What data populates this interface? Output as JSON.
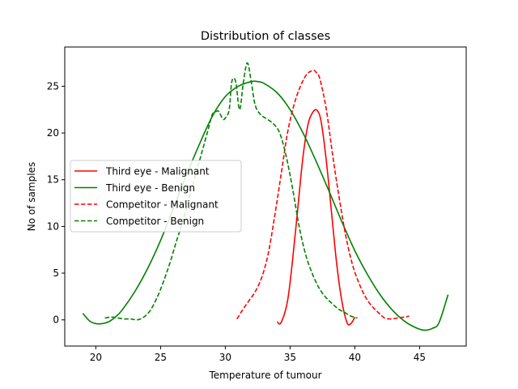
{
  "chart_data": {
    "type": "line",
    "title": "Distribution of classes",
    "xlabel": "Temperature of tumour",
    "ylabel": "No of samples",
    "xlim": [
      17.6,
      48.6
    ],
    "ylim": [
      -2.8,
      29.2
    ],
    "xticks": [
      20,
      25,
      30,
      35,
      40,
      45
    ],
    "yticks": [
      0,
      5,
      10,
      15,
      20,
      25
    ],
    "grid": false,
    "legend_position": "center-left",
    "series": [
      {
        "name": "Third eye - Malignant",
        "color": "#ff0000",
        "dash": "solid",
        "x": [
          34.0,
          34.3,
          34.8,
          35.2,
          35.6,
          36.0,
          36.4,
          36.8,
          37.1,
          37.4,
          37.8,
          38.2,
          38.6,
          39.0,
          39.4,
          39.7,
          40.0
        ],
        "y": [
          -0.2,
          -0.3,
          2.0,
          6.5,
          12.0,
          17.5,
          21.0,
          22.3,
          22.4,
          21.2,
          17.0,
          11.5,
          6.0,
          2.0,
          -0.3,
          -0.4,
          0.3
        ]
      },
      {
        "name": "Third eye - Benign",
        "color": "#008000",
        "dash": "solid",
        "x": [
          19.0,
          19.5,
          20.0,
          20.5,
          21.0,
          21.5,
          22.0,
          23.0,
          24.0,
          25.0,
          26.0,
          27.0,
          28.0,
          29.0,
          30.0,
          31.0,
          32.0,
          32.5,
          33.0,
          34.0,
          35.0,
          36.0,
          37.0,
          38.0,
          39.0,
          40.0,
          41.0,
          42.0,
          43.0,
          44.0,
          45.0,
          45.5,
          46.0,
          46.5,
          47.2
        ],
        "y": [
          0.7,
          -0.1,
          -0.4,
          -0.4,
          -0.2,
          0.3,
          1.0,
          3.0,
          5.5,
          8.5,
          12.0,
          15.5,
          18.8,
          21.8,
          23.9,
          25.0,
          25.5,
          25.5,
          25.3,
          24.3,
          22.5,
          20.0,
          17.0,
          13.8,
          10.5,
          7.4,
          4.8,
          2.6,
          0.9,
          -0.3,
          -1.0,
          -1.1,
          -0.9,
          -0.3,
          2.7
        ]
      },
      {
        "name": "Competitor - Malignant",
        "color": "#ff0000",
        "dash": "dashed",
        "x": [
          30.9,
          31.3,
          31.8,
          32.3,
          32.8,
          33.3,
          33.8,
          34.3,
          34.8,
          35.3,
          35.8,
          36.3,
          36.8,
          37.0,
          37.3,
          37.8,
          38.3,
          38.8,
          39.3,
          39.8,
          40.3,
          40.8,
          41.3,
          41.8,
          42.3,
          42.8,
          43.3,
          43.8,
          44.2
        ],
        "y": [
          0.1,
          1.0,
          2.0,
          3.0,
          4.5,
          7.0,
          11.0,
          15.5,
          20.0,
          23.0,
          25.0,
          26.3,
          26.7,
          26.5,
          25.8,
          22.5,
          17.5,
          13.0,
          9.0,
          6.0,
          4.0,
          2.5,
          1.5,
          0.8,
          0.2,
          0.1,
          0.2,
          0.3,
          0.4
        ]
      },
      {
        "name": "Competitor - Benign",
        "color": "#008000",
        "dash": "dashed",
        "x": [
          20.7,
          21.2,
          21.7,
          22.2,
          22.7,
          23.2,
          23.7,
          24.2,
          24.7,
          25.2,
          25.7,
          26.2,
          26.7,
          27.2,
          27.7,
          28.2,
          28.7,
          29.0,
          29.3,
          29.5,
          29.8,
          30.0,
          30.3,
          30.5,
          30.8,
          31.1,
          31.4,
          31.7,
          32.0,
          32.3,
          32.7,
          33.2,
          33.7,
          34.2,
          34.7,
          35.2,
          35.7,
          36.2,
          36.7,
          37.2,
          37.7,
          38.2,
          38.7,
          39.2,
          39.7,
          40.2
        ],
        "y": [
          0.2,
          0.3,
          0.2,
          0.1,
          0.1,
          0.0,
          0.3,
          1.0,
          2.3,
          4.0,
          6.0,
          8.3,
          10.5,
          13.0,
          15.5,
          18.0,
          20.5,
          22.0,
          22.3,
          22.3,
          21.5,
          21.6,
          22.5,
          25.5,
          25.5,
          22.5,
          25.5,
          27.5,
          25.5,
          23.0,
          22.0,
          21.5,
          21.0,
          20.0,
          17.5,
          14.0,
          10.0,
          7.0,
          5.0,
          3.5,
          2.5,
          1.8,
          1.2,
          0.8,
          0.4,
          0.2
        ]
      }
    ]
  }
}
